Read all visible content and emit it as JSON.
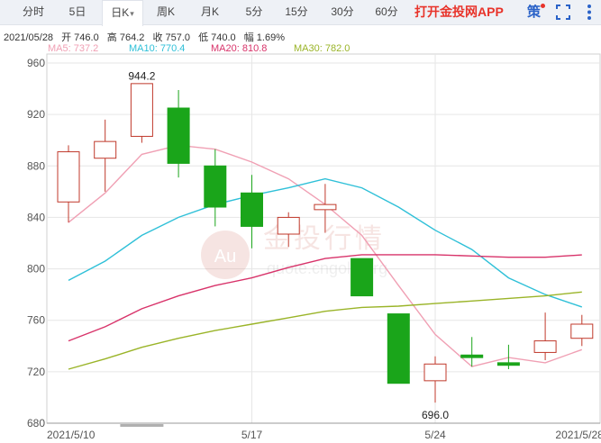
{
  "tabs": [
    {
      "label": "分时"
    },
    {
      "label": "5日"
    },
    {
      "label": "日K",
      "active": true
    },
    {
      "label": "周K"
    },
    {
      "label": "月K"
    },
    {
      "label": "5分"
    },
    {
      "label": "15分"
    },
    {
      "label": "30分"
    },
    {
      "label": "60分"
    }
  ],
  "cta_label": "打开金投网APP",
  "strategy_label": "策",
  "icons": {
    "fullscreen": "fullscreen-icon",
    "more": "more-icon",
    "strategy": "strategy-icon"
  },
  "info": {
    "date": "2021/05/28",
    "open": "开 746.0",
    "high": "高 764.2",
    "close": "收 757.0",
    "low": "低 740.0",
    "amp": "幅 1.69%"
  },
  "legend": {
    "ma5": "MA5: 737.2",
    "ma10": "MA10: 770.4",
    "ma20": "MA20: 810.8",
    "ma30": "MA30: 782.0"
  },
  "colors": {
    "up": "#c0392b",
    "down": "#1aa51a",
    "ma5": "#f0a0b4",
    "ma10": "#2fc0d8",
    "ma20": "#d8336a",
    "ma30": "#9ab428",
    "grid": "#e6e6e6",
    "axis": "#555555"
  },
  "watermark": {
    "cn": "金投行情",
    "url": "quote.cngold.org",
    "logo": "Au"
  },
  "chart_data": {
    "type": "candlestick",
    "ylim": [
      680,
      960
    ],
    "yticks": [
      960,
      920,
      880,
      840,
      800,
      760,
      720,
      680
    ],
    "xlabels": [
      "2021/5/10",
      "5/17",
      "5/24",
      "2021/5/28"
    ],
    "candles": [
      {
        "o": 852,
        "h": 896,
        "l": 836,
        "c": 891
      },
      {
        "o": 886,
        "h": 916,
        "l": 860,
        "c": 899
      },
      {
        "o": 903,
        "h": 944.2,
        "l": 898,
        "c": 944
      },
      {
        "o": 925,
        "h": 939,
        "l": 871,
        "c": 882
      },
      {
        "o": 880,
        "h": 893,
        "l": 833,
        "c": 848
      },
      {
        "o": 859,
        "h": 873,
        "l": 816,
        "c": 833
      },
      {
        "o": 827,
        "h": 844,
        "l": 817,
        "c": 840
      },
      {
        "o": 846,
        "h": 866,
        "l": 828,
        "c": 850
      },
      {
        "o": 808,
        "h": 808,
        "l": 779,
        "c": 779
      },
      {
        "o": 765,
        "h": 765,
        "l": 711,
        "c": 711
      },
      {
        "o": 713,
        "h": 732,
        "l": 696.0,
        "c": 726
      },
      {
        "o": 733,
        "h": 747,
        "l": 724,
        "c": 731
      },
      {
        "o": 727,
        "h": 741,
        "l": 722,
        "c": 725
      },
      {
        "o": 735,
        "h": 766,
        "l": 729,
        "c": 744
      },
      {
        "o": 746,
        "h": 764.2,
        "l": 740,
        "c": 757
      }
    ],
    "annotations": [
      {
        "text": "944.2",
        "index": 2,
        "value": 944.2
      },
      {
        "text": "696.0",
        "index": 10,
        "value": 696.0
      }
    ],
    "series": [
      {
        "name": "MA5",
        "values": [
          836,
          859,
          889,
          896,
          893,
          883,
          870,
          850,
          826,
          787,
          749,
          724,
          731,
          727,
          737.2
        ]
      },
      {
        "name": "MA10",
        "values": [
          791,
          806,
          826,
          840,
          850,
          857,
          863,
          870,
          863,
          848,
          830,
          815,
          793,
          780,
          770.4
        ]
      },
      {
        "name": "MA20",
        "values": [
          744,
          755,
          769,
          779,
          787,
          793,
          801,
          808,
          811,
          811,
          811,
          810,
          809,
          809,
          810.8
        ]
      },
      {
        "name": "MA30",
        "values": [
          722,
          730,
          739,
          746,
          752,
          757,
          762,
          767,
          770,
          771,
          773,
          775,
          777,
          779,
          782.0
        ]
      }
    ]
  }
}
